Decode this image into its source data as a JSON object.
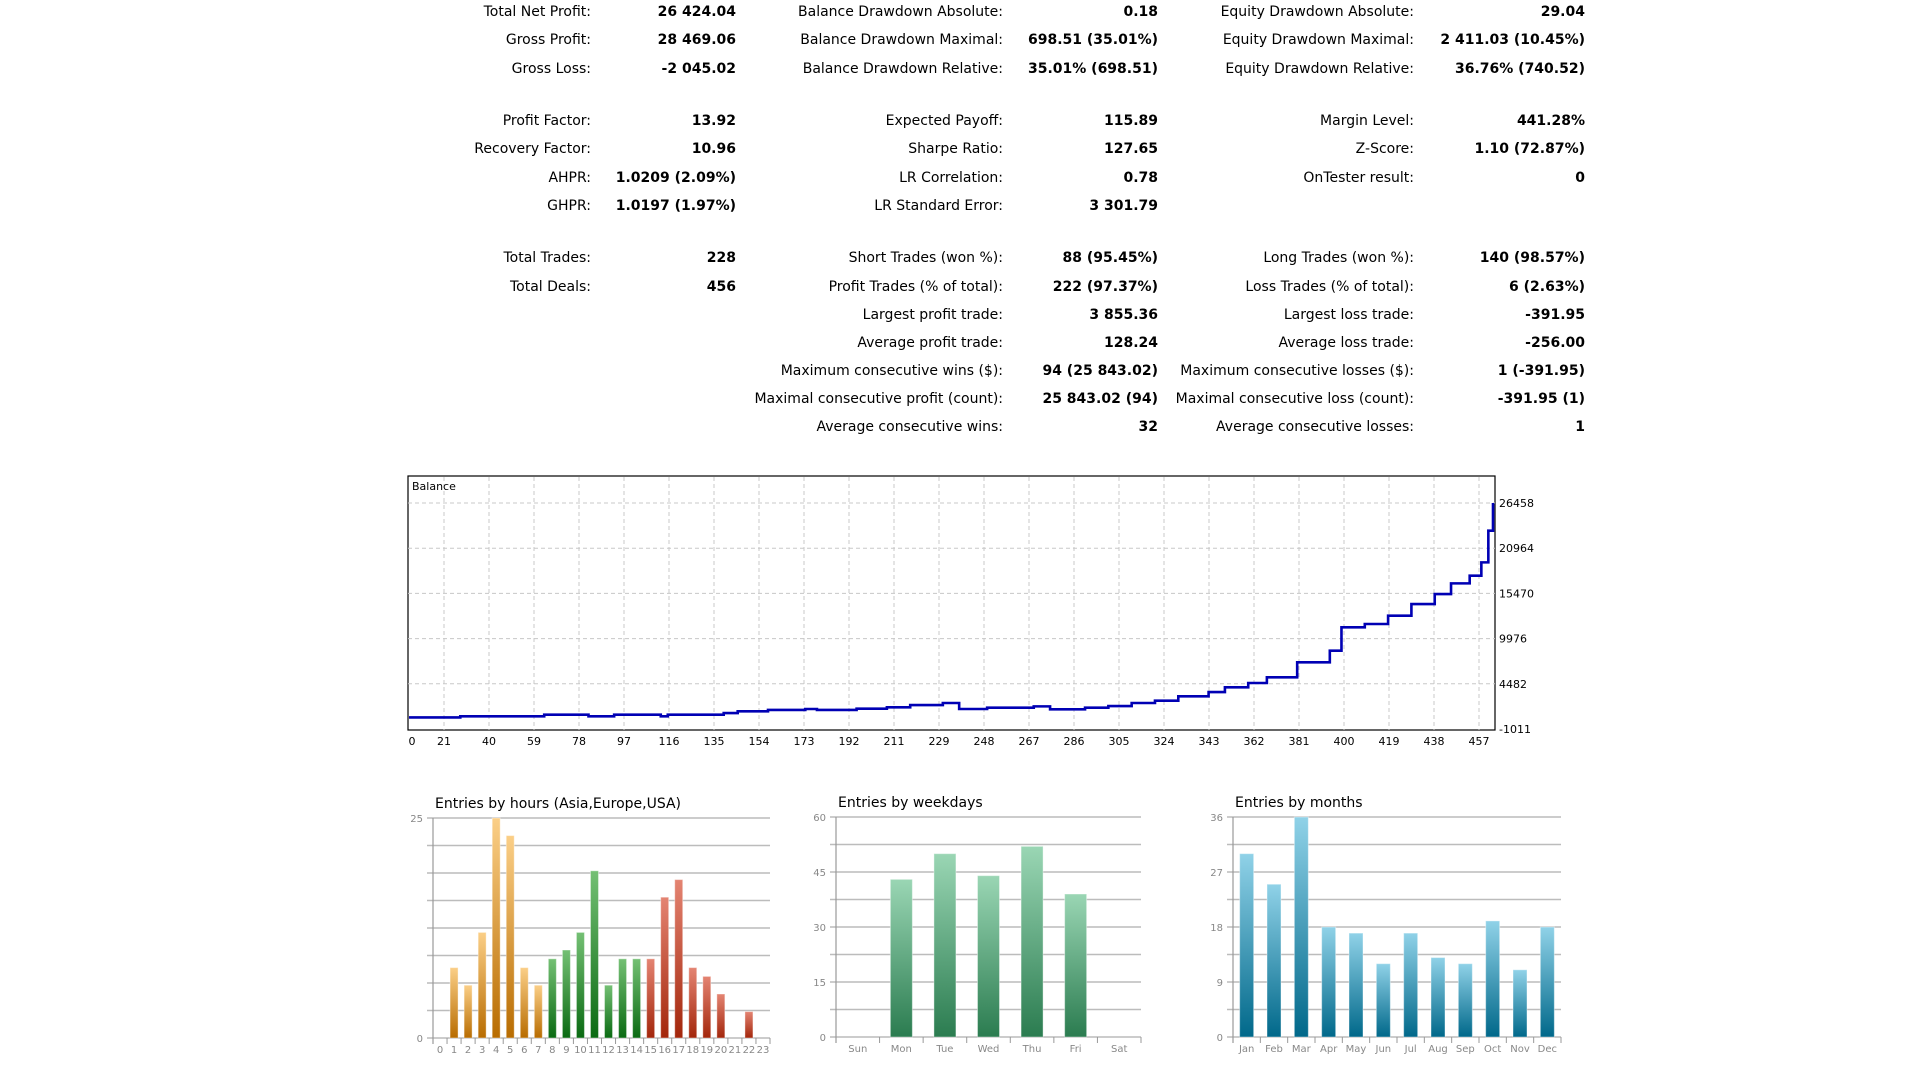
{
  "stats": [
    {
      "l1": "Total Net Profit:",
      "v1": "26 424.04",
      "l2": "Balance Drawdown Absolute:",
      "v2": "0.18",
      "l3": "Equity Drawdown Absolute:",
      "v3": "29.04"
    },
    {
      "l1": "Gross Profit:",
      "v1": "28 469.06",
      "l2": "Balance Drawdown Maximal:",
      "v2": "698.51 (35.01%)",
      "l3": "Equity Drawdown Maximal:",
      "v3": "2 411.03 (10.45%)"
    },
    {
      "l1": "Gross Loss:",
      "v1": "-2 045.02",
      "l2": "Balance Drawdown Relative:",
      "v2": "35.01% (698.51)",
      "l3": "Equity Drawdown Relative:",
      "v3": "36.76% (740.52)"
    },
    {
      "l1": "Profit Factor:",
      "v1": "13.92",
      "l2": "Expected Payoff:",
      "v2": "115.89",
      "l3": "Margin Level:",
      "v3": "441.28%"
    },
    {
      "l1": "Recovery Factor:",
      "v1": "10.96",
      "l2": "Sharpe Ratio:",
      "v2": "127.65",
      "l3": "Z-Score:",
      "v3": "1.10 (72.87%)"
    },
    {
      "l1": "AHPR:",
      "v1": "1.0209 (2.09%)",
      "l2": "LR Correlation:",
      "v2": "0.78",
      "l3": "OnTester result:",
      "v3": "0"
    },
    {
      "l1": "GHPR:",
      "v1": "1.0197 (1.97%)",
      "l2": "LR Standard Error:",
      "v2": "3 301.79",
      "l3": "",
      "v3": ""
    },
    {
      "l1": "Total Trades:",
      "v1": "228",
      "l2": "Short Trades (won %):",
      "v2": "88 (95.45%)",
      "l3": "Long Trades (won %):",
      "v3": "140 (98.57%)"
    },
    {
      "l1": "Total Deals:",
      "v1": "456",
      "l2": "Profit Trades (% of total):",
      "v2": "222 (97.37%)",
      "l3": "Loss Trades (% of total):",
      "v3": "6 (2.63%)"
    },
    {
      "l1": "",
      "v1": "",
      "l2": "Largest profit trade:",
      "v2": "3 855.36",
      "l3": "Largest loss trade:",
      "v3": "-391.95"
    },
    {
      "l1": "",
      "v1": "",
      "l2": "Average profit trade:",
      "v2": "128.24",
      "l3": "Average loss trade:",
      "v3": "-256.00"
    },
    {
      "l1": "",
      "v1": "",
      "l2": "Maximum consecutive wins ($):",
      "v2": "94 (25 843.02)",
      "l3": "Maximum consecutive losses ($):",
      "v3": "1 (-391.95)"
    },
    {
      "l1": "",
      "v1": "",
      "l2": "Maximal consecutive profit (count):",
      "v2": "25 843.02 (94)",
      "l3": "Maximal consecutive loss (count):",
      "v3": "-391.95 (1)"
    },
    {
      "l1": "",
      "v1": "",
      "l2": "Average consecutive wins:",
      "v2": "32",
      "l3": "Average consecutive losses:",
      "v3": "1"
    }
  ],
  "chart_data": [
    {
      "type": "line",
      "title": "Balance",
      "color": "#0000b4",
      "ytick_labels": [
        "26458",
        "20964",
        "15470",
        "9976",
        "4482",
        "-1011"
      ],
      "ylim": [
        -1011,
        26458
      ],
      "xtick_labels": [
        "0",
        "21",
        "40",
        "59",
        "78",
        "97",
        "116",
        "135",
        "154",
        "173",
        "192",
        "211",
        "229",
        "248",
        "267",
        "286",
        "305",
        "324",
        "343",
        "362",
        "381",
        "400",
        "419",
        "438",
        "457"
      ],
      "points": [
        [
          0,
          400
        ],
        [
          22,
          530
        ],
        [
          58,
          730
        ],
        [
          77,
          530
        ],
        [
          88,
          730
        ],
        [
          108,
          530
        ],
        [
          111,
          730
        ],
        [
          135,
          930
        ],
        [
          141,
          1135
        ],
        [
          154,
          1300
        ],
        [
          170,
          1420
        ],
        [
          175,
          1300
        ],
        [
          192,
          1460
        ],
        [
          205,
          1620
        ],
        [
          215,
          1900
        ],
        [
          229,
          2150
        ],
        [
          236,
          1420
        ],
        [
          248,
          1580
        ],
        [
          268,
          1740
        ],
        [
          275,
          1380
        ],
        [
          290,
          1580
        ],
        [
          300,
          1780
        ],
        [
          310,
          2150
        ],
        [
          320,
          2430
        ],
        [
          330,
          2960
        ],
        [
          343,
          3480
        ],
        [
          350,
          4050
        ],
        [
          360,
          4580
        ],
        [
          368,
          5270
        ],
        [
          381,
          7090
        ],
        [
          395,
          8510
        ],
        [
          400,
          11350
        ],
        [
          410,
          11750
        ],
        [
          420,
          12760
        ],
        [
          430,
          14180
        ],
        [
          440,
          15390
        ],
        [
          447,
          16690
        ],
        [
          455,
          17620
        ],
        [
          460,
          19240
        ],
        [
          463,
          23090
        ],
        [
          465,
          26458
        ]
      ]
    },
    {
      "type": "bar",
      "title": "Entries by hours (Asia,Europe,USA)",
      "ylim": [
        0,
        25
      ],
      "ytick_labels": [
        "25",
        "0"
      ],
      "categories": [
        "0",
        "1",
        "2",
        "3",
        "4",
        "5",
        "6",
        "7",
        "8",
        "9",
        "10",
        "11",
        "12",
        "13",
        "14",
        "15",
        "16",
        "17",
        "18",
        "19",
        "20",
        "21",
        "22",
        "23"
      ],
      "values": [
        0,
        8,
        6,
        12,
        25,
        23,
        8,
        6,
        9,
        10,
        12,
        19,
        6,
        9,
        9,
        9,
        16,
        18,
        8,
        7,
        5,
        0,
        3,
        0
      ],
      "colors": {
        "asia": [
          "#fbcf87",
          "#b86c00"
        ],
        "europe": [
          "#74c074",
          "#0a6a12"
        ],
        "usa": [
          "#e48472",
          "#a3260b"
        ]
      }
    },
    {
      "type": "bar",
      "title": "Entries by weekdays",
      "ylim": [
        0,
        60
      ],
      "ytick_labels": [
        "60",
        "45",
        "30",
        "15",
        "0"
      ],
      "categories": [
        "Sun",
        "Mon",
        "Tue",
        "Wed",
        "Thu",
        "Fri",
        "Sat"
      ],
      "values": [
        0,
        43,
        50,
        44,
        52,
        39,
        0
      ],
      "colors": [
        "#9ad6b4",
        "#2b7c50"
      ]
    },
    {
      "type": "bar",
      "title": "Entries by months",
      "ylim": [
        0,
        36
      ],
      "ytick_labels": [
        "36",
        "27",
        "18",
        "9",
        "0"
      ],
      "categories": [
        "Jan",
        "Feb",
        "Mar",
        "Apr",
        "May",
        "Jun",
        "Jul",
        "Aug",
        "Sep",
        "Oct",
        "Nov",
        "Dec"
      ],
      "values": [
        30,
        25,
        36,
        18,
        17,
        12,
        17,
        13,
        12,
        19,
        11,
        18
      ],
      "colors": [
        "#90d2e8",
        "#00688a"
      ]
    }
  ]
}
